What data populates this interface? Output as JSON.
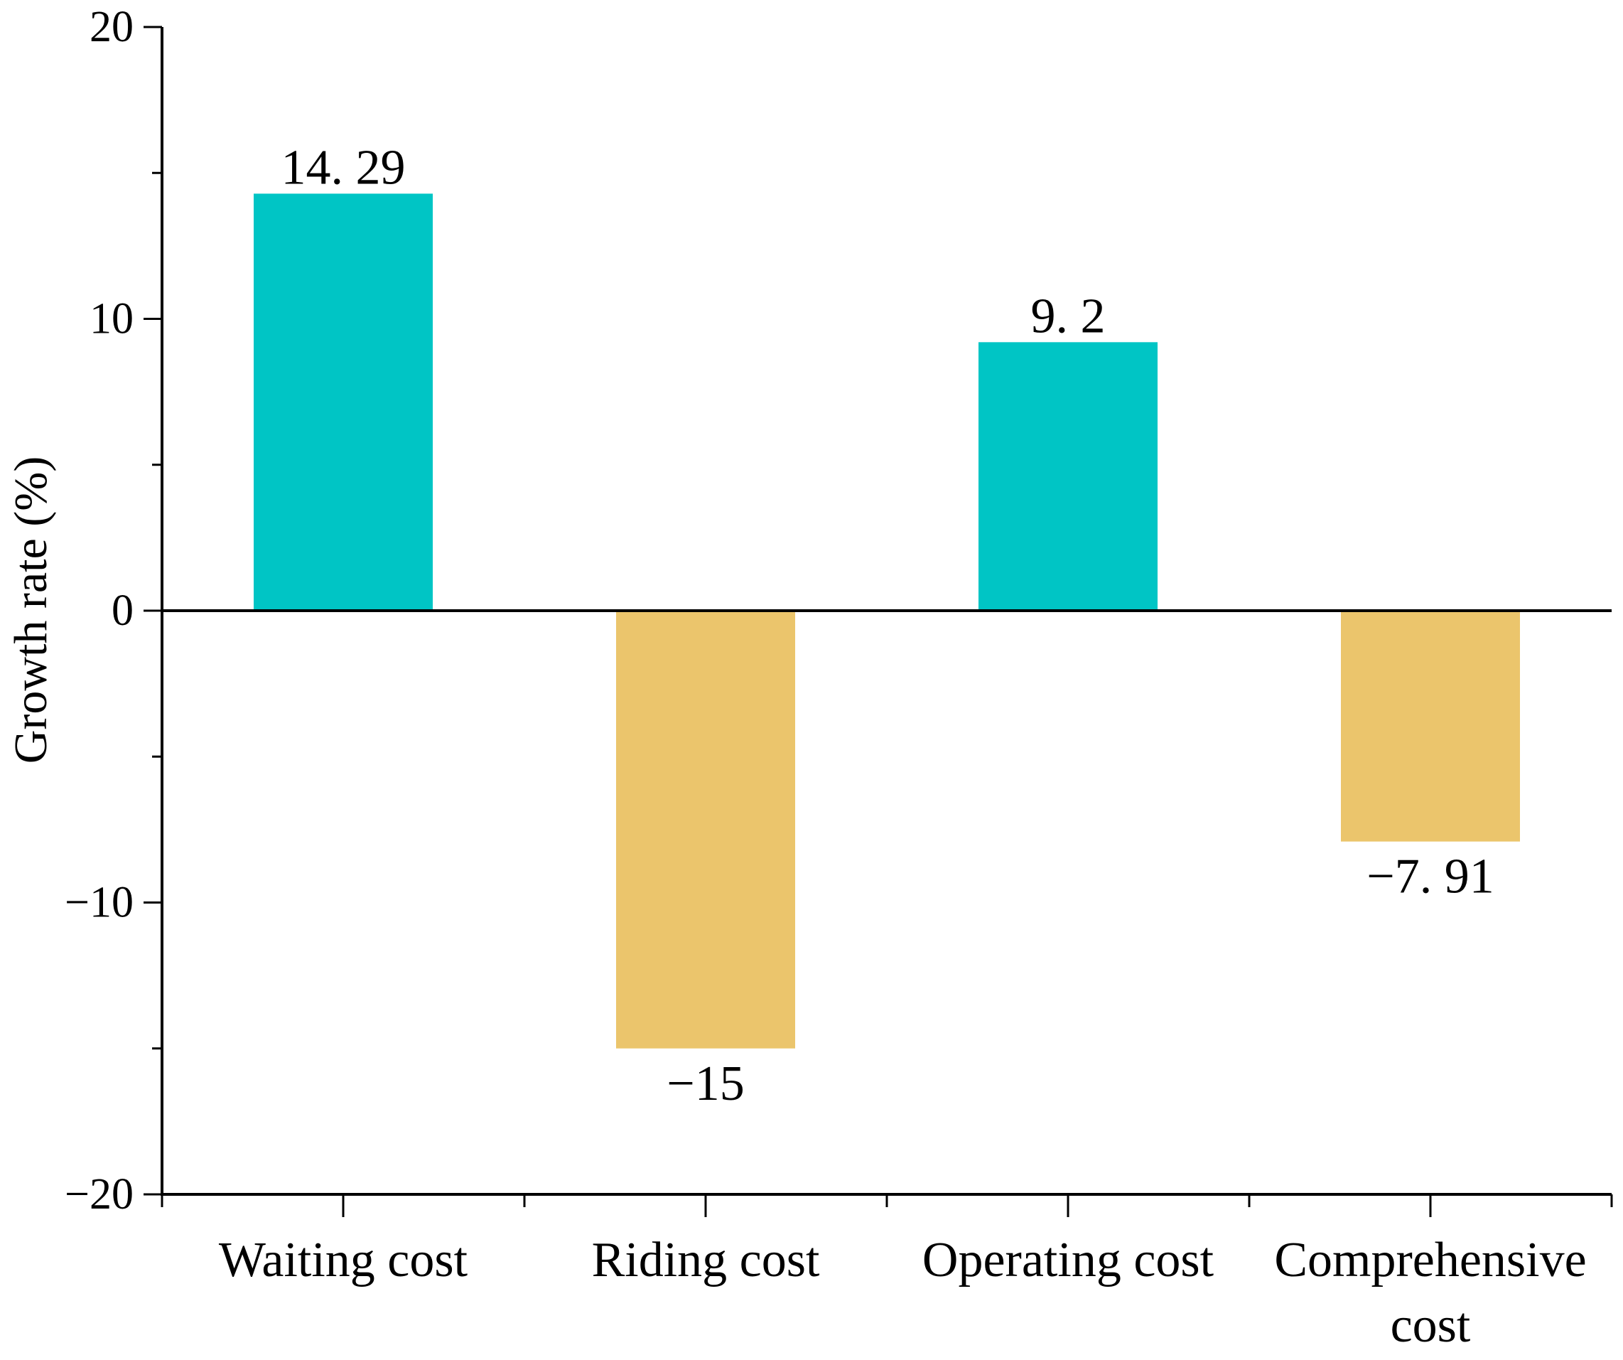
{
  "chart_data": {
    "type": "bar",
    "title": "",
    "xlabel": "",
    "ylabel": "Growth rate (%)",
    "ylim": [
      -20,
      20
    ],
    "yticks": [
      -20,
      -10,
      0,
      10,
      20
    ],
    "ytick_labels": [
      "−20",
      "−10",
      "0",
      "10",
      "20"
    ],
    "categories": [
      [
        "Waiting cost"
      ],
      [
        "Riding cost"
      ],
      [
        "Operating cost"
      ],
      [
        "Comprehensive",
        "cost"
      ]
    ],
    "values": [
      14.29,
      -15,
      9.2,
      -7.91
    ],
    "data_labels": [
      "14. 29",
      "−15",
      "9. 2",
      "−7. 91"
    ],
    "grid": false,
    "colors": {
      "positive": "#00C5C5",
      "negative": "#EBC56C",
      "axis": "#000000"
    }
  }
}
